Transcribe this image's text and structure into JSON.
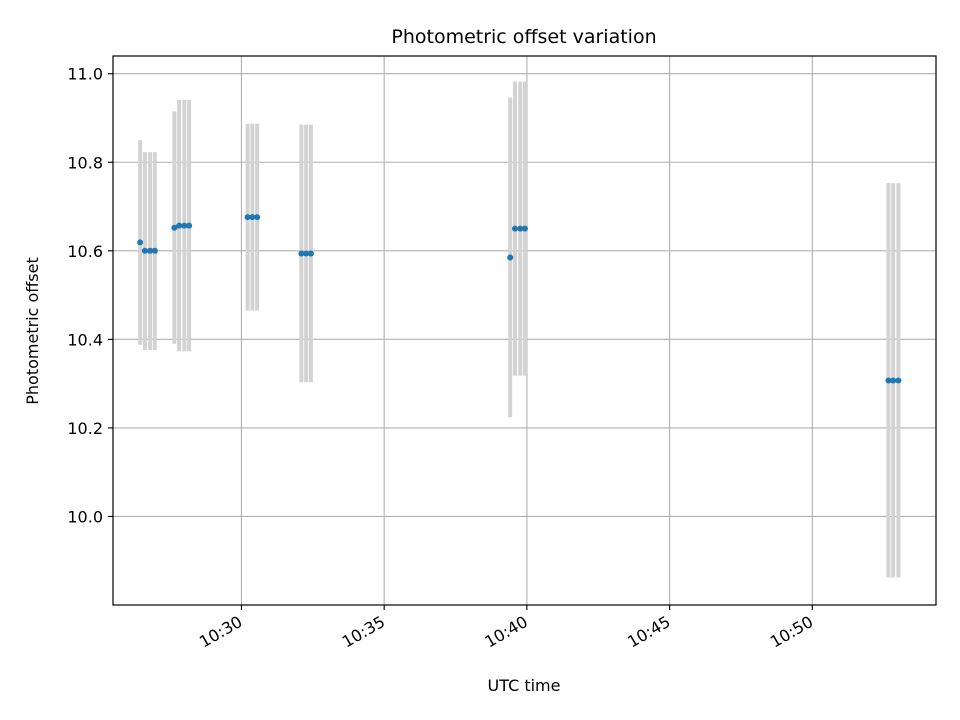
{
  "chart_data": {
    "type": "scatter",
    "title": "Photometric offset variation",
    "xlabel": "UTC time",
    "ylabel": "Photometric offset",
    "grid": true,
    "legend": "none",
    "colors": {
      "point": "#1f77b4",
      "errorbar": "#d3d3d3",
      "grid": "#b0b0b0"
    },
    "xlim": [
      "10:25:30",
      "10:54:20"
    ],
    "ylim": [
      9.8,
      11.04
    ],
    "x_ticks": [
      "10:30",
      "10:35",
      "10:40",
      "10:45",
      "10:50"
    ],
    "y_ticks": [
      "10.0",
      "10.2",
      "10.4",
      "10.6",
      "10.8",
      "11.0"
    ],
    "series": [
      {
        "points": [
          {
            "x": "10:26:27",
            "y": 10.619,
            "lo": 10.388,
            "hi": 10.85
          },
          {
            "x": "10:26:37",
            "y": 10.6,
            "lo": 10.376,
            "hi": 10.823
          },
          {
            "x": "10:26:48",
            "y": 10.6,
            "lo": 10.376,
            "hi": 10.823
          },
          {
            "x": "10:26:58",
            "y": 10.6,
            "lo": 10.376,
            "hi": 10.823
          },
          {
            "x": "10:27:39",
            "y": 10.652,
            "lo": 10.39,
            "hi": 10.915
          },
          {
            "x": "10:27:49",
            "y": 10.657,
            "lo": 10.373,
            "hi": 10.941
          },
          {
            "x": "10:28:00",
            "y": 10.657,
            "lo": 10.373,
            "hi": 10.941
          },
          {
            "x": "10:28:10",
            "y": 10.657,
            "lo": 10.373,
            "hi": 10.941
          },
          {
            "x": "10:30:13",
            "y": 10.676,
            "lo": 10.465,
            "hi": 10.887
          },
          {
            "x": "10:30:23",
            "y": 10.676,
            "lo": 10.465,
            "hi": 10.887
          },
          {
            "x": "10:30:33",
            "y": 10.676,
            "lo": 10.465,
            "hi": 10.887
          },
          {
            "x": "10:32:06",
            "y": 10.594,
            "lo": 10.303,
            "hi": 10.885
          },
          {
            "x": "10:32:16",
            "y": 10.594,
            "lo": 10.303,
            "hi": 10.885
          },
          {
            "x": "10:32:26",
            "y": 10.594,
            "lo": 10.303,
            "hi": 10.885
          },
          {
            "x": "10:39:25",
            "y": 10.585,
            "lo": 10.224,
            "hi": 10.946
          },
          {
            "x": "10:39:35",
            "y": 10.65,
            "lo": 10.318,
            "hi": 10.982
          },
          {
            "x": "10:39:46",
            "y": 10.65,
            "lo": 10.318,
            "hi": 10.982
          },
          {
            "x": "10:39:56",
            "y": 10.65,
            "lo": 10.318,
            "hi": 10.982
          },
          {
            "x": "10:52:40",
            "y": 10.307,
            "lo": 9.862,
            "hi": 10.753
          },
          {
            "x": "10:52:50",
            "y": 10.307,
            "lo": 9.862,
            "hi": 10.753
          },
          {
            "x": "10:53:01",
            "y": 10.307,
            "lo": 9.862,
            "hi": 10.753
          }
        ]
      }
    ]
  }
}
